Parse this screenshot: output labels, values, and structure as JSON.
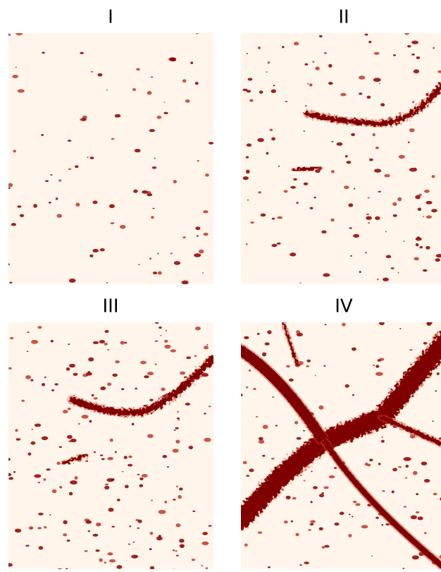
{
  "panels": [
    {
      "label": "I"
    },
    {
      "label": "II"
    },
    {
      "label": "III"
    },
    {
      "label": "IV"
    }
  ]
}
